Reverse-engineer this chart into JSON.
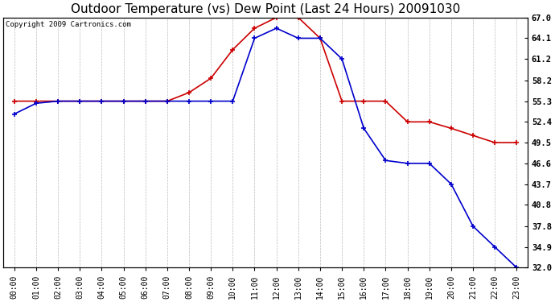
{
  "title": "Outdoor Temperature (vs) Dew Point (Last 24 Hours) 20091030",
  "copyright": "Copyright 2009 Cartronics.com",
  "x_labels": [
    "00:00",
    "01:00",
    "02:00",
    "03:00",
    "04:00",
    "05:00",
    "06:00",
    "07:00",
    "08:00",
    "09:00",
    "10:00",
    "11:00",
    "12:00",
    "13:00",
    "14:00",
    "15:00",
    "16:00",
    "17:00",
    "18:00",
    "19:00",
    "20:00",
    "21:00",
    "22:00",
    "23:00"
  ],
  "temp_data": [
    55.3,
    55.3,
    55.3,
    55.3,
    55.3,
    55.3,
    55.3,
    55.3,
    56.5,
    58.5,
    62.5,
    65.5,
    67.0,
    67.0,
    64.1,
    55.3,
    55.3,
    55.3,
    52.4,
    52.4,
    51.5,
    50.5,
    49.5,
    49.5
  ],
  "dew_data": [
    53.5,
    55.0,
    55.3,
    55.3,
    55.3,
    55.3,
    55.3,
    55.3,
    55.3,
    55.3,
    55.3,
    64.1,
    65.5,
    64.1,
    64.1,
    61.2,
    51.5,
    47.0,
    46.6,
    46.6,
    43.7,
    37.8,
    34.9,
    32.0
  ],
  "ylim_min": 32.0,
  "ylim_max": 67.0,
  "ytick_labels": [
    "32.0",
    "34.9",
    "37.8",
    "40.8",
    "43.7",
    "46.6",
    "49.5",
    "52.4",
    "55.3",
    "58.2",
    "61.2",
    "64.1",
    "67.0"
  ],
  "ytick_values": [
    32.0,
    34.9,
    37.8,
    40.8,
    43.7,
    46.6,
    49.5,
    52.4,
    55.3,
    58.2,
    61.2,
    64.1,
    67.0
  ],
  "temp_color": "#cc0000",
  "dew_color": "#0000cc",
  "grid_color": "#bbbbbb",
  "bg_color": "#ffffff",
  "title_fontsize": 11,
  "copyright_fontsize": 6.5,
  "tick_fontsize": 7,
  "ytick_fontsize": 7.5
}
